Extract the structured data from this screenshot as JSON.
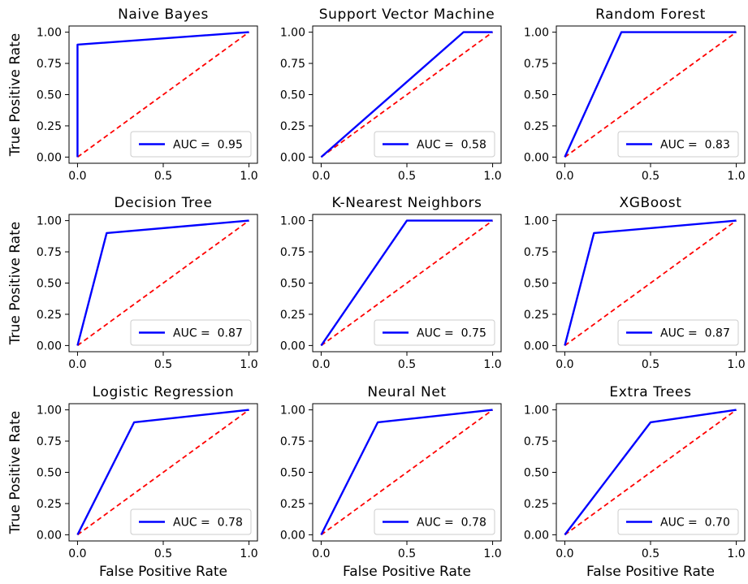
{
  "chart_data": [
    {
      "type": "line",
      "title": "Naive Bayes",
      "xlabel": "",
      "ylabel": "True Positive Rate",
      "xlim": [
        0,
        1
      ],
      "ylim": [
        0,
        1
      ],
      "xticks": [
        "0.0",
        "0.5",
        "1.0"
      ],
      "yticks": [
        "0.00",
        "0.25",
        "0.50",
        "0.75",
        "1.00"
      ],
      "series": [
        {
          "name": "AUC =  0.95",
          "color": "#0000ff",
          "style": "solid",
          "x": [
            0,
            0,
            1
          ],
          "y": [
            0,
            0.9,
            1
          ]
        },
        {
          "color": "#ff0000",
          "style": "dashed",
          "x": [
            0,
            1
          ],
          "y": [
            0,
            1
          ]
        }
      ],
      "legend": "lower-right"
    },
    {
      "type": "line",
      "title": "Support Vector Machine",
      "xlabel": "",
      "ylabel": "",
      "xlim": [
        0,
        1
      ],
      "ylim": [
        0,
        1
      ],
      "xticks": [
        "0.0",
        "0.5",
        "1.0"
      ],
      "yticks": [
        "0.00",
        "0.25",
        "0.50",
        "0.75",
        "1.00"
      ],
      "series": [
        {
          "name": "AUC =  0.58",
          "color": "#0000ff",
          "style": "solid",
          "x": [
            0,
            0.83,
            1
          ],
          "y": [
            0,
            1,
            1
          ]
        },
        {
          "color": "#ff0000",
          "style": "dashed",
          "x": [
            0,
            1
          ],
          "y": [
            0,
            1
          ]
        }
      ],
      "legend": "lower-right"
    },
    {
      "type": "line",
      "title": "Random Forest",
      "xlabel": "",
      "ylabel": "",
      "xlim": [
        0,
        1
      ],
      "ylim": [
        0,
        1
      ],
      "xticks": [
        "0.0",
        "0.5",
        "1.0"
      ],
      "yticks": [
        "0.00",
        "0.25",
        "0.50",
        "0.75",
        "1.00"
      ],
      "series": [
        {
          "name": "AUC =  0.83",
          "color": "#0000ff",
          "style": "solid",
          "x": [
            0,
            0.33,
            1
          ],
          "y": [
            0,
            1,
            1
          ]
        },
        {
          "color": "#ff0000",
          "style": "dashed",
          "x": [
            0,
            1
          ],
          "y": [
            0,
            1
          ]
        }
      ],
      "legend": "lower-right"
    },
    {
      "type": "line",
      "title": "Decision Tree",
      "xlabel": "",
      "ylabel": "True Positive Rate",
      "xlim": [
        0,
        1
      ],
      "ylim": [
        0,
        1
      ],
      "xticks": [
        "0.0",
        "0.5",
        "1.0"
      ],
      "yticks": [
        "0.00",
        "0.25",
        "0.50",
        "0.75",
        "1.00"
      ],
      "series": [
        {
          "name": "AUC =  0.87",
          "color": "#0000ff",
          "style": "solid",
          "x": [
            0,
            0.17,
            1
          ],
          "y": [
            0,
            0.9,
            1
          ]
        },
        {
          "color": "#ff0000",
          "style": "dashed",
          "x": [
            0,
            1
          ],
          "y": [
            0,
            1
          ]
        }
      ],
      "legend": "lower-right"
    },
    {
      "type": "line",
      "title": "K-Nearest Neighbors",
      "xlabel": "",
      "ylabel": "",
      "xlim": [
        0,
        1
      ],
      "ylim": [
        0,
        1
      ],
      "xticks": [
        "0.0",
        "0.5",
        "1.0"
      ],
      "yticks": [
        "0.00",
        "0.25",
        "0.50",
        "0.75",
        "1.00"
      ],
      "series": [
        {
          "name": "AUC =  0.75",
          "color": "#0000ff",
          "style": "solid",
          "x": [
            0,
            0.5,
            1
          ],
          "y": [
            0,
            1,
            1
          ]
        },
        {
          "color": "#ff0000",
          "style": "dashed",
          "x": [
            0,
            1
          ],
          "y": [
            0,
            1
          ]
        }
      ],
      "legend": "lower-right"
    },
    {
      "type": "line",
      "title": "XGBoost",
      "xlabel": "",
      "ylabel": "",
      "xlim": [
        0,
        1
      ],
      "ylim": [
        0,
        1
      ],
      "xticks": [
        "0.0",
        "0.5",
        "1.0"
      ],
      "yticks": [
        "0.00",
        "0.25",
        "0.50",
        "0.75",
        "1.00"
      ],
      "series": [
        {
          "name": "AUC =  0.87",
          "color": "#0000ff",
          "style": "solid",
          "x": [
            0,
            0.17,
            1
          ],
          "y": [
            0,
            0.9,
            1
          ]
        },
        {
          "color": "#ff0000",
          "style": "dashed",
          "x": [
            0,
            1
          ],
          "y": [
            0,
            1
          ]
        }
      ],
      "legend": "lower-right"
    },
    {
      "type": "line",
      "title": "Logistic Regression",
      "xlabel": "False Positive Rate",
      "ylabel": "True Positive Rate",
      "xlim": [
        0,
        1
      ],
      "ylim": [
        0,
        1
      ],
      "xticks": [
        "0.0",
        "0.5",
        "1.0"
      ],
      "yticks": [
        "0.00",
        "0.25",
        "0.50",
        "0.75",
        "1.00"
      ],
      "series": [
        {
          "name": "AUC =  0.78",
          "color": "#0000ff",
          "style": "solid",
          "x": [
            0,
            0.33,
            1
          ],
          "y": [
            0,
            0.9,
            1
          ]
        },
        {
          "color": "#ff0000",
          "style": "dashed",
          "x": [
            0,
            1
          ],
          "y": [
            0,
            1
          ]
        }
      ],
      "legend": "lower-right"
    },
    {
      "type": "line",
      "title": "Neural Net",
      "xlabel": "False Positive Rate",
      "ylabel": "",
      "xlim": [
        0,
        1
      ],
      "ylim": [
        0,
        1
      ],
      "xticks": [
        "0.0",
        "0.5",
        "1.0"
      ],
      "yticks": [
        "0.00",
        "0.25",
        "0.50",
        "0.75",
        "1.00"
      ],
      "series": [
        {
          "name": "AUC =  0.78",
          "color": "#0000ff",
          "style": "solid",
          "x": [
            0,
            0.33,
            1
          ],
          "y": [
            0,
            0.9,
            1
          ]
        },
        {
          "color": "#ff0000",
          "style": "dashed",
          "x": [
            0,
            1
          ],
          "y": [
            0,
            1
          ]
        }
      ],
      "legend": "lower-right"
    },
    {
      "type": "line",
      "title": "Extra Trees",
      "xlabel": "False Positive Rate",
      "ylabel": "",
      "xlim": [
        0,
        1
      ],
      "ylim": [
        0,
        1
      ],
      "xticks": [
        "0.0",
        "0.5",
        "1.0"
      ],
      "yticks": [
        "0.00",
        "0.25",
        "0.50",
        "0.75",
        "1.00"
      ],
      "series": [
        {
          "name": "AUC =  0.70",
          "color": "#0000ff",
          "style": "solid",
          "x": [
            0,
            0.5,
            1
          ],
          "y": [
            0,
            0.9,
            1
          ]
        },
        {
          "color": "#ff0000",
          "style": "dashed",
          "x": [
            0,
            1
          ],
          "y": [
            0,
            1
          ]
        }
      ],
      "legend": "lower-right"
    }
  ]
}
